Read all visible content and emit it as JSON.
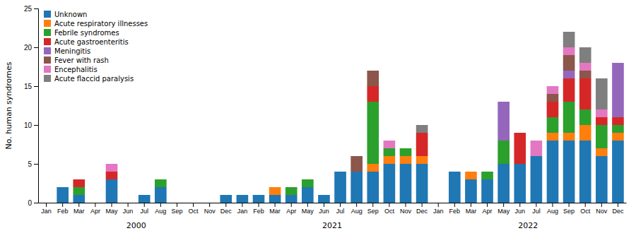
{
  "chart_data": {
    "type": "bar",
    "stacked": true,
    "categories": [
      "Jan",
      "Feb",
      "Mar",
      "Apr",
      "May",
      "Jun",
      "Jul",
      "Aug",
      "Sep",
      "Oct",
      "Nov",
      "Dec",
      "Jan",
      "Feb",
      "Mar",
      "Apr",
      "May",
      "Jun",
      "Jul",
      "Aug",
      "Sep",
      "Oct",
      "Nov",
      "Dec",
      "Jan",
      "Feb",
      "Mar",
      "Apr",
      "May",
      "Jun",
      "Jul",
      "Aug",
      "Sep",
      "Oct",
      "Nov",
      "Dec"
    ],
    "annotations": [
      "2000",
      "2021",
      "2022"
    ],
    "series": [
      {
        "name": "Unknown",
        "values": [
          0,
          2,
          1,
          0,
          3,
          0,
          1,
          2,
          0,
          0,
          0,
          1,
          1,
          1,
          1,
          1,
          2,
          1,
          4,
          4,
          4,
          5,
          5,
          5,
          0,
          4,
          3,
          3,
          5,
          5,
          6,
          8,
          8,
          8,
          6,
          8
        ]
      },
      {
        "name": "Acute respiratory illnesses",
        "values": [
          0,
          0,
          0,
          0,
          0,
          0,
          0,
          0,
          0,
          0,
          0,
          0,
          0,
          0,
          1,
          0,
          0,
          0,
          0,
          0,
          1,
          1,
          1,
          1,
          0,
          0,
          1,
          0,
          0,
          0,
          0,
          1,
          1,
          2,
          1,
          1
        ]
      },
      {
        "name": "Febrile syndromes",
        "values": [
          0,
          0,
          1,
          0,
          0,
          0,
          0,
          1,
          0,
          0,
          0,
          0,
          0,
          0,
          0,
          1,
          1,
          0,
          0,
          0,
          8,
          1,
          1,
          0,
          0,
          0,
          0,
          1,
          3,
          0,
          0,
          2,
          4,
          2,
          3,
          1
        ]
      },
      {
        "name": "Acute gastroenteritis",
        "values": [
          0,
          0,
          1,
          0,
          1,
          0,
          0,
          0,
          0,
          0,
          0,
          0,
          0,
          0,
          0,
          0,
          0,
          0,
          0,
          0,
          2,
          0,
          0,
          3,
          0,
          0,
          0,
          0,
          0,
          4,
          0,
          2,
          3,
          4,
          1,
          1
        ]
      },
      {
        "name": "Meningitis",
        "values": [
          0,
          0,
          0,
          0,
          0,
          0,
          0,
          0,
          0,
          0,
          0,
          0,
          0,
          0,
          0,
          0,
          0,
          0,
          0,
          0,
          0,
          0,
          0,
          0,
          0,
          0,
          0,
          0,
          5,
          0,
          0,
          0,
          1,
          0,
          0,
          7
        ]
      },
      {
        "name": "Fever with rash",
        "values": [
          0,
          0,
          0,
          0,
          0,
          0,
          0,
          0,
          0,
          0,
          0,
          0,
          0,
          0,
          0,
          0,
          0,
          0,
          0,
          2,
          2,
          0,
          0,
          0,
          0,
          0,
          0,
          0,
          0,
          0,
          0,
          1,
          2,
          1,
          0,
          0
        ]
      },
      {
        "name": "Encephalitis",
        "values": [
          0,
          0,
          0,
          0,
          1,
          0,
          0,
          0,
          0,
          0,
          0,
          0,
          0,
          0,
          0,
          0,
          0,
          0,
          0,
          0,
          0,
          1,
          0,
          0,
          0,
          0,
          0,
          0,
          0,
          0,
          2,
          1,
          1,
          1,
          1,
          0
        ]
      },
      {
        "name": "Acute flaccid paralysis",
        "values": [
          0,
          0,
          0,
          0,
          0,
          0,
          0,
          0,
          0,
          0,
          0,
          0,
          0,
          0,
          0,
          0,
          0,
          0,
          0,
          0,
          0,
          0,
          0,
          1,
          0,
          0,
          0,
          0,
          0,
          0,
          0,
          0,
          2,
          2,
          4,
          0
        ]
      }
    ],
    "ylabel": "No. human syndromes",
    "ylim": [
      0,
      25
    ],
    "yticks": [
      0,
      5,
      10,
      15,
      20,
      25
    ],
    "grid": false,
    "legend": "upper left"
  }
}
